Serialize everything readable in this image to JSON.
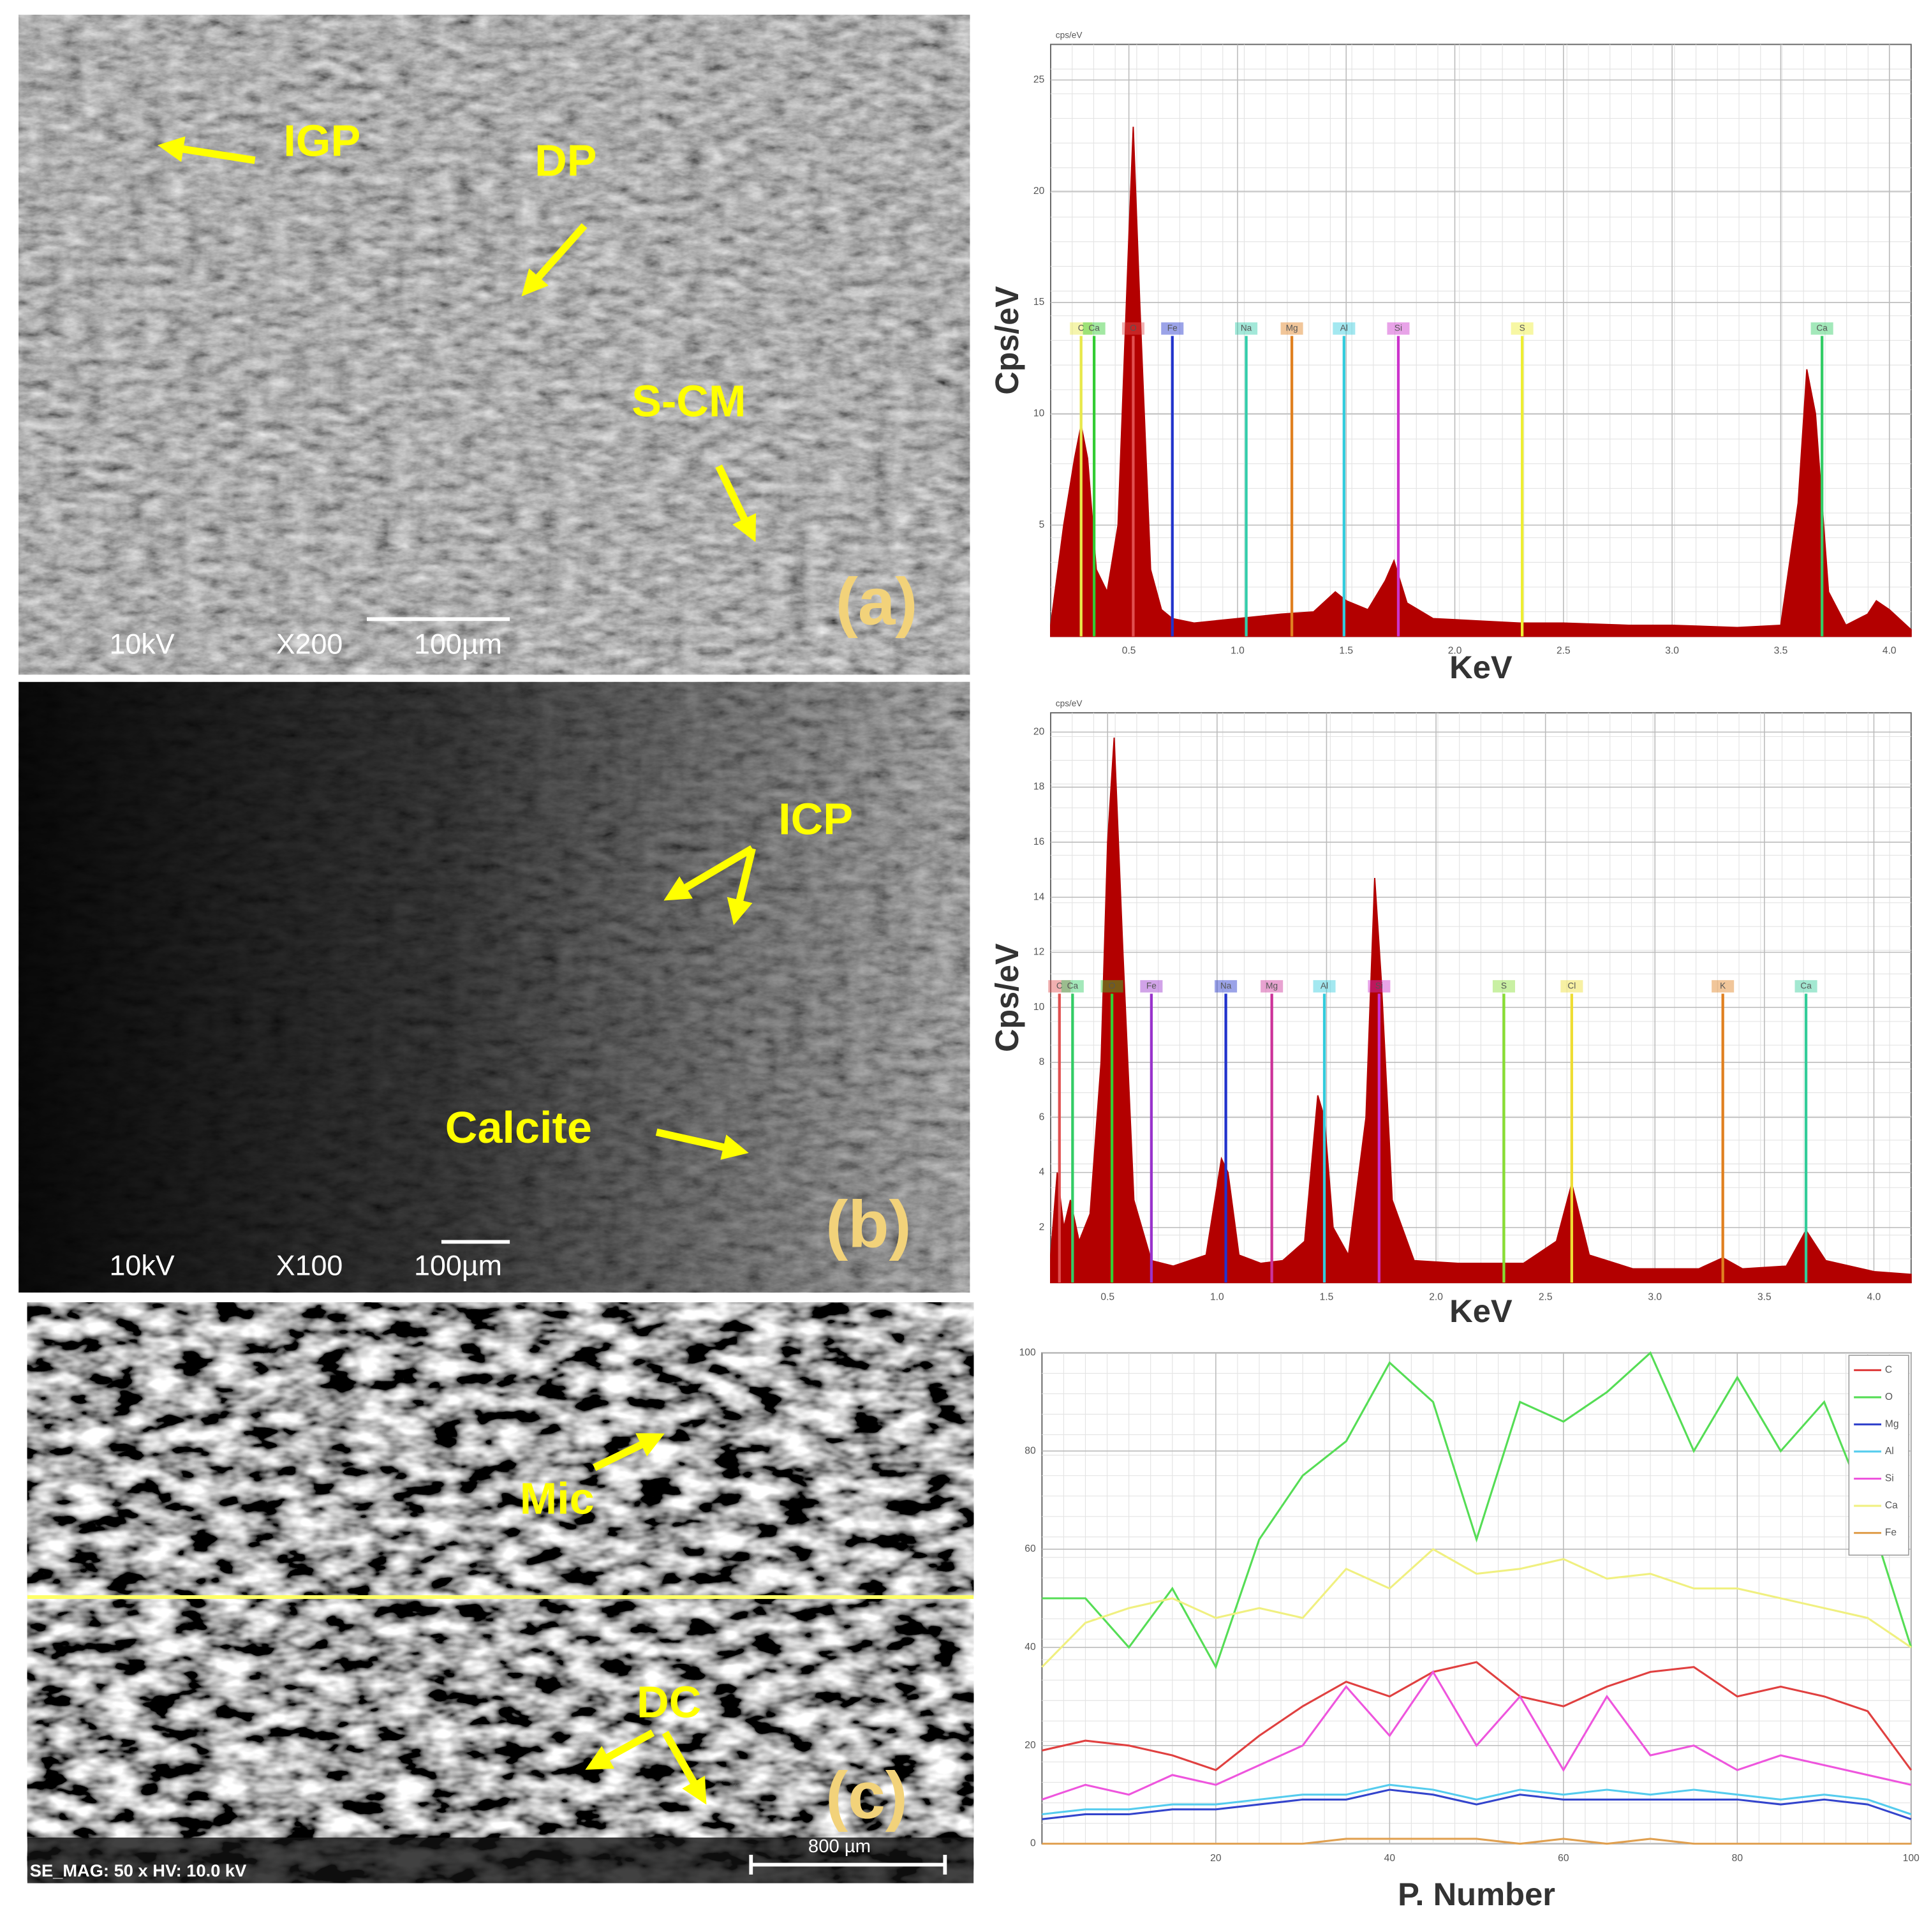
{
  "micrographs": [
    {
      "annotations": [
        "IGP",
        "DP",
        "S-CM"
      ],
      "label": "(a)",
      "voltage": "10kV",
      "magnification": "X200",
      "scale_bar": "100µm"
    },
    {
      "annotations": [
        "ICP",
        "Calcite"
      ],
      "label": "(b)",
      "voltage": "10kV",
      "magnification": "X100",
      "scale_bar": "100µm"
    },
    {
      "annotations": [
        "Mic",
        "DC"
      ],
      "label": "(c)",
      "info": "SE_MAG: 50 x HV: 10.0 kV",
      "scale_bar": "800 µm"
    }
  ],
  "chart_data": [
    {
      "type": "area",
      "unit_label": "cps/eV",
      "y_label": "Cps/eV",
      "x_label": "KeV",
      "color": "#b30000",
      "x": [
        0.14,
        0.2,
        0.25,
        0.28,
        0.31,
        0.35,
        0.4,
        0.45,
        0.5,
        0.52,
        0.55,
        0.6,
        0.65,
        0.7,
        0.8,
        1.0,
        1.2,
        1.35,
        1.45,
        1.5,
        1.6,
        1.68,
        1.72,
        1.78,
        1.9,
        2.1,
        2.3,
        2.5,
        2.8,
        3.0,
        3.3,
        3.5,
        3.58,
        3.62,
        3.66,
        3.72,
        3.8,
        3.9,
        3.94,
        4.0,
        4.1
      ],
      "values": [
        0.5,
        5,
        8,
        9.5,
        8,
        3,
        2,
        5,
        18,
        22.9,
        15,
        3,
        1.2,
        0.8,
        0.6,
        0.8,
        1.0,
        1.1,
        2,
        1.6,
        1.2,
        2.5,
        3.4,
        1.5,
        0.8,
        0.7,
        0.6,
        0.6,
        0.5,
        0.5,
        0.4,
        0.5,
        6,
        12,
        10,
        2,
        0.5,
        1,
        1.6,
        1.2,
        0.3
      ],
      "xlim": [
        0.14,
        4.1
      ],
      "ylim": [
        0,
        26.6
      ],
      "xticks": [
        0.5,
        {
          "value": 1,
          "label": "1.0"
        },
        1.5,
        {
          "value": 2,
          "label": "2.0"
        },
        2.5,
        {
          "value": 3,
          "label": "3.0"
        },
        3.5,
        {
          "value": 4,
          "label": "4.0"
        }
      ],
      "yticks": [
        5,
        10,
        15,
        20,
        25
      ],
      "grid": true,
      "elements": [
        {
          "label": "C",
          "x": 0.28,
          "color": "#e8e84a"
        },
        {
          "label": "Ca",
          "x": 0.34,
          "color": "#33cc33"
        },
        {
          "label": "O",
          "x": 0.52,
          "color": "#e05050"
        },
        {
          "label": "Fe",
          "x": 0.7,
          "color": "#2233cc"
        },
        {
          "label": "Na",
          "x": 1.04,
          "color": "#33ccaa"
        },
        {
          "label": "Mg",
          "x": 1.25,
          "color": "#e08020"
        },
        {
          "label": "Al",
          "x": 1.49,
          "color": "#33ccdd"
        },
        {
          "label": "Si",
          "x": 1.74,
          "color": "#cc33cc"
        },
        {
          "label": "S",
          "x": 2.31,
          "color": "#eeee33"
        },
        {
          "label": "Ca",
          "x": 3.69,
          "color": "#33cc66"
        }
      ]
    },
    {
      "type": "area",
      "unit_label": "cps/eV",
      "y_label": "Cps/eV",
      "x_label": "KeV",
      "color": "#b30000",
      "x": [
        0.24,
        0.27,
        0.3,
        0.33,
        0.37,
        0.42,
        0.47,
        0.5,
        0.53,
        0.57,
        0.62,
        0.7,
        0.8,
        0.95,
        1.02,
        1.05,
        1.1,
        1.2,
        1.3,
        1.4,
        1.46,
        1.49,
        1.53,
        1.6,
        1.68,
        1.72,
        1.75,
        1.8,
        1.9,
        2.1,
        2.4,
        2.55,
        2.62,
        2.7,
        2.9,
        3.2,
        3.31,
        3.4,
        3.6,
        3.69,
        3.78,
        4.0,
        4.17
      ],
      "values": [
        1,
        4,
        2,
        3,
        1.5,
        2.5,
        8,
        16,
        19.8,
        12,
        3,
        0.8,
        0.6,
        1,
        4.5,
        4,
        1,
        0.7,
        0.8,
        1.5,
        6.8,
        6,
        2,
        1,
        6,
        14.7,
        11,
        3,
        0.8,
        0.7,
        0.7,
        1.5,
        3.6,
        1,
        0.5,
        0.5,
        0.9,
        0.5,
        0.6,
        1.9,
        0.8,
        0.4,
        0.3
      ],
      "xlim": [
        0.24,
        4.17
      ],
      "ylim": [
        0,
        20.7
      ],
      "xticks": [
        0.5,
        {
          "value": 1,
          "label": "1.0"
        },
        1.5,
        {
          "value": 2,
          "label": "2.0"
        },
        2.5,
        {
          "value": 3,
          "label": "3.0"
        },
        3.5,
        {
          "value": 4,
          "label": "4.0"
        }
      ],
      "yticks": [
        2,
        4,
        6,
        8,
        10,
        12,
        14,
        16,
        18,
        20
      ],
      "grid": true,
      "elements": [
        {
          "label": "C",
          "x": 0.28,
          "color": "#e05050"
        },
        {
          "label": "Ca",
          "x": 0.34,
          "color": "#33cc66"
        },
        {
          "label": "O",
          "x": 0.52,
          "color": "#33cc33"
        },
        {
          "label": "Fe",
          "x": 0.7,
          "color": "#9933cc"
        },
        {
          "label": "Na",
          "x": 1.04,
          "color": "#2233cc"
        },
        {
          "label": "Mg",
          "x": 1.25,
          "color": "#cc3399"
        },
        {
          "label": "Al",
          "x": 1.49,
          "color": "#33ccdd"
        },
        {
          "label": "Si",
          "x": 1.74,
          "color": "#cc33cc"
        },
        {
          "label": "S",
          "x": 2.31,
          "color": "#88dd33"
        },
        {
          "label": "Cl",
          "x": 2.62,
          "color": "#eedd33"
        },
        {
          "label": "K",
          "x": 3.31,
          "color": "#e08020"
        },
        {
          "label": "Ca",
          "x": 3.69,
          "color": "#33cc99"
        }
      ]
    },
    {
      "type": "line",
      "x_label": "P. Number",
      "x": [
        0,
        5,
        10,
        15,
        20,
        25,
        30,
        35,
        40,
        45,
        50,
        55,
        60,
        65,
        70,
        75,
        80,
        85,
        90,
        95,
        100
      ],
      "xlim": [
        0,
        100
      ],
      "ylim": [
        0,
        100
      ],
      "xticks": [
        20,
        40,
        60,
        80,
        100
      ],
      "yticks": [
        0,
        20,
        40,
        60,
        80,
        100
      ],
      "grid": true,
      "legend": "upper right",
      "series": [
        {
          "name": "C",
          "color": "#e04040",
          "values": [
            19,
            21,
            20,
            18,
            15,
            22,
            28,
            33,
            30,
            35,
            37,
            30,
            28,
            32,
            35,
            36,
            30,
            32,
            30,
            27,
            15
          ]
        },
        {
          "name": "O",
          "color": "#55dd55",
          "values": [
            50,
            50,
            40,
            52,
            36,
            62,
            75,
            82,
            98,
            90,
            62,
            90,
            86,
            92,
            100,
            80,
            95,
            80,
            90,
            68,
            40
          ]
        },
        {
          "name": "Mg",
          "color": "#3344cc",
          "values": [
            5,
            6,
            6,
            7,
            7,
            8,
            9,
            9,
            11,
            10,
            8,
            10,
            9,
            9,
            9,
            9,
            9,
            8,
            9,
            8,
            5
          ]
        },
        {
          "name": "Al",
          "color": "#55ccee",
          "values": [
            6,
            7,
            7,
            8,
            8,
            9,
            10,
            10,
            12,
            11,
            9,
            11,
            10,
            11,
            10,
            11,
            10,
            9,
            10,
            9,
            6
          ]
        },
        {
          "name": "Si",
          "color": "#ee55dd",
          "values": [
            9,
            12,
            10,
            14,
            12,
            16,
            20,
            32,
            22,
            35,
            20,
            30,
            15,
            30,
            18,
            20,
            15,
            18,
            16,
            14,
            12
          ]
        },
        {
          "name": "Ca",
          "color": "#f0f080",
          "values": [
            36,
            45,
            48,
            50,
            46,
            48,
            46,
            56,
            52,
            60,
            55,
            56,
            58,
            54,
            55,
            52,
            52,
            50,
            48,
            46,
            40
          ]
        },
        {
          "name": "Fe",
          "color": "#e0a050",
          "values": [
            0,
            0,
            0,
            0,
            0,
            0,
            0,
            1,
            1,
            1,
            1,
            0,
            1,
            0,
            1,
            0,
            0,
            0,
            0,
            0,
            0
          ]
        }
      ]
    }
  ]
}
